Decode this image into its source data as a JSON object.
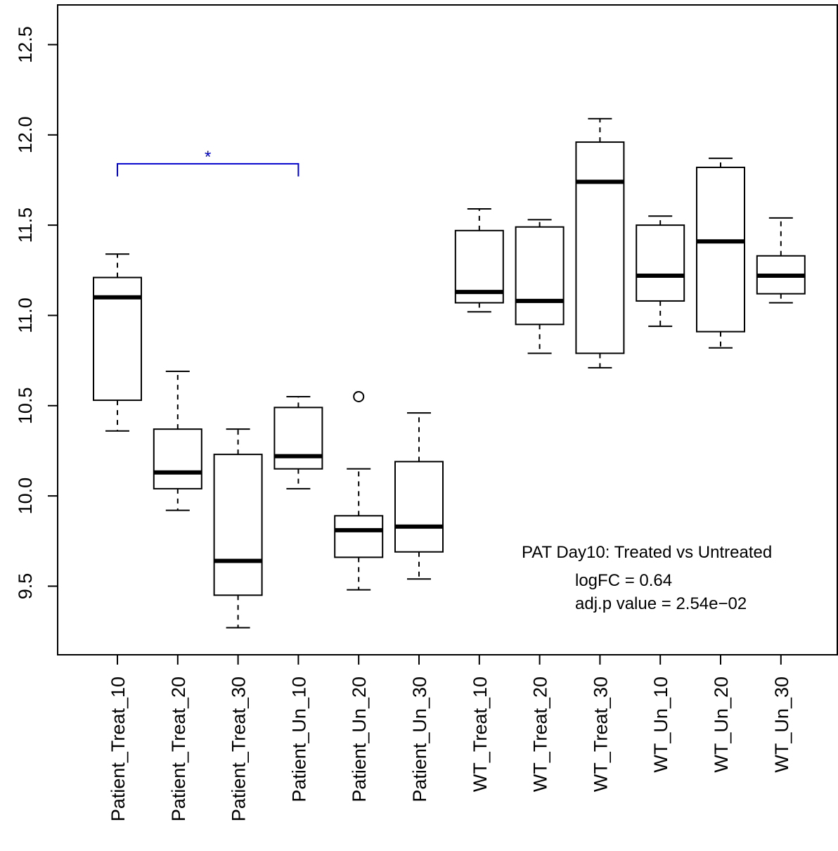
{
  "chart_data": {
    "type": "boxplot",
    "title": "",
    "xlabel": "",
    "ylabel": "",
    "ylim": [
      9.12,
      12.72
    ],
    "yticks": [
      9.5,
      10.0,
      10.5,
      11.0,
      11.5,
      12.0,
      12.5
    ],
    "ytick_labels": [
      "9.5",
      "10.0",
      "10.5",
      "11.0",
      "11.5",
      "12.0",
      "12.5"
    ],
    "grid": false,
    "categories": [
      "Patient_Treat_10",
      "Patient_Treat_20",
      "Patient_Treat_30",
      "Patient_Un_10",
      "Patient_Un_20",
      "Patient_Un_30",
      "WT_Treat_10",
      "WT_Treat_20",
      "WT_Treat_30",
      "WT_Un_10",
      "WT_Un_20",
      "WT_Un_30"
    ],
    "boxes": [
      {
        "min": 10.36,
        "q1": 10.53,
        "median": 11.1,
        "q3": 11.21,
        "max": 11.34,
        "outliers": []
      },
      {
        "min": 9.92,
        "q1": 10.04,
        "median": 10.13,
        "q3": 10.37,
        "max": 10.69,
        "outliers": []
      },
      {
        "min": 9.27,
        "q1": 9.45,
        "median": 9.64,
        "q3": 10.23,
        "max": 10.37,
        "outliers": []
      },
      {
        "min": 10.04,
        "q1": 10.15,
        "median": 10.22,
        "q3": 10.49,
        "max": 10.55,
        "outliers": []
      },
      {
        "min": 9.48,
        "q1": 9.66,
        "median": 9.81,
        "q3": 9.89,
        "max": 10.15,
        "outliers": [
          10.55
        ]
      },
      {
        "min": 9.54,
        "q1": 9.69,
        "median": 9.83,
        "q3": 10.19,
        "max": 10.46,
        "outliers": []
      },
      {
        "min": 11.02,
        "q1": 11.07,
        "median": 11.13,
        "q3": 11.47,
        "max": 11.59,
        "outliers": []
      },
      {
        "min": 10.79,
        "q1": 10.95,
        "median": 11.08,
        "q3": 11.49,
        "max": 11.53,
        "outliers": []
      },
      {
        "min": 10.71,
        "q1": 10.79,
        "median": 11.74,
        "q3": 11.96,
        "max": 12.09,
        "outliers": []
      },
      {
        "min": 10.94,
        "q1": 11.08,
        "median": 11.22,
        "q3": 11.5,
        "max": 11.55,
        "outliers": []
      },
      {
        "min": 10.82,
        "q1": 10.91,
        "median": 11.41,
        "q3": 11.82,
        "max": 11.87,
        "outliers": []
      },
      {
        "min": 11.07,
        "q1": 11.12,
        "median": 11.22,
        "q3": 11.33,
        "max": 11.54,
        "outliers": []
      }
    ],
    "significance": {
      "from": "Patient_Treat_10",
      "to": "Patient_Un_10",
      "label": "*",
      "y": 11.84,
      "color": "#0000cc"
    },
    "annotation": {
      "title": "PAT Day10: Treated vs Untreated",
      "lines": [
        "logFC =  0.64",
        "adj.p value =  2.54e−02"
      ]
    }
  }
}
